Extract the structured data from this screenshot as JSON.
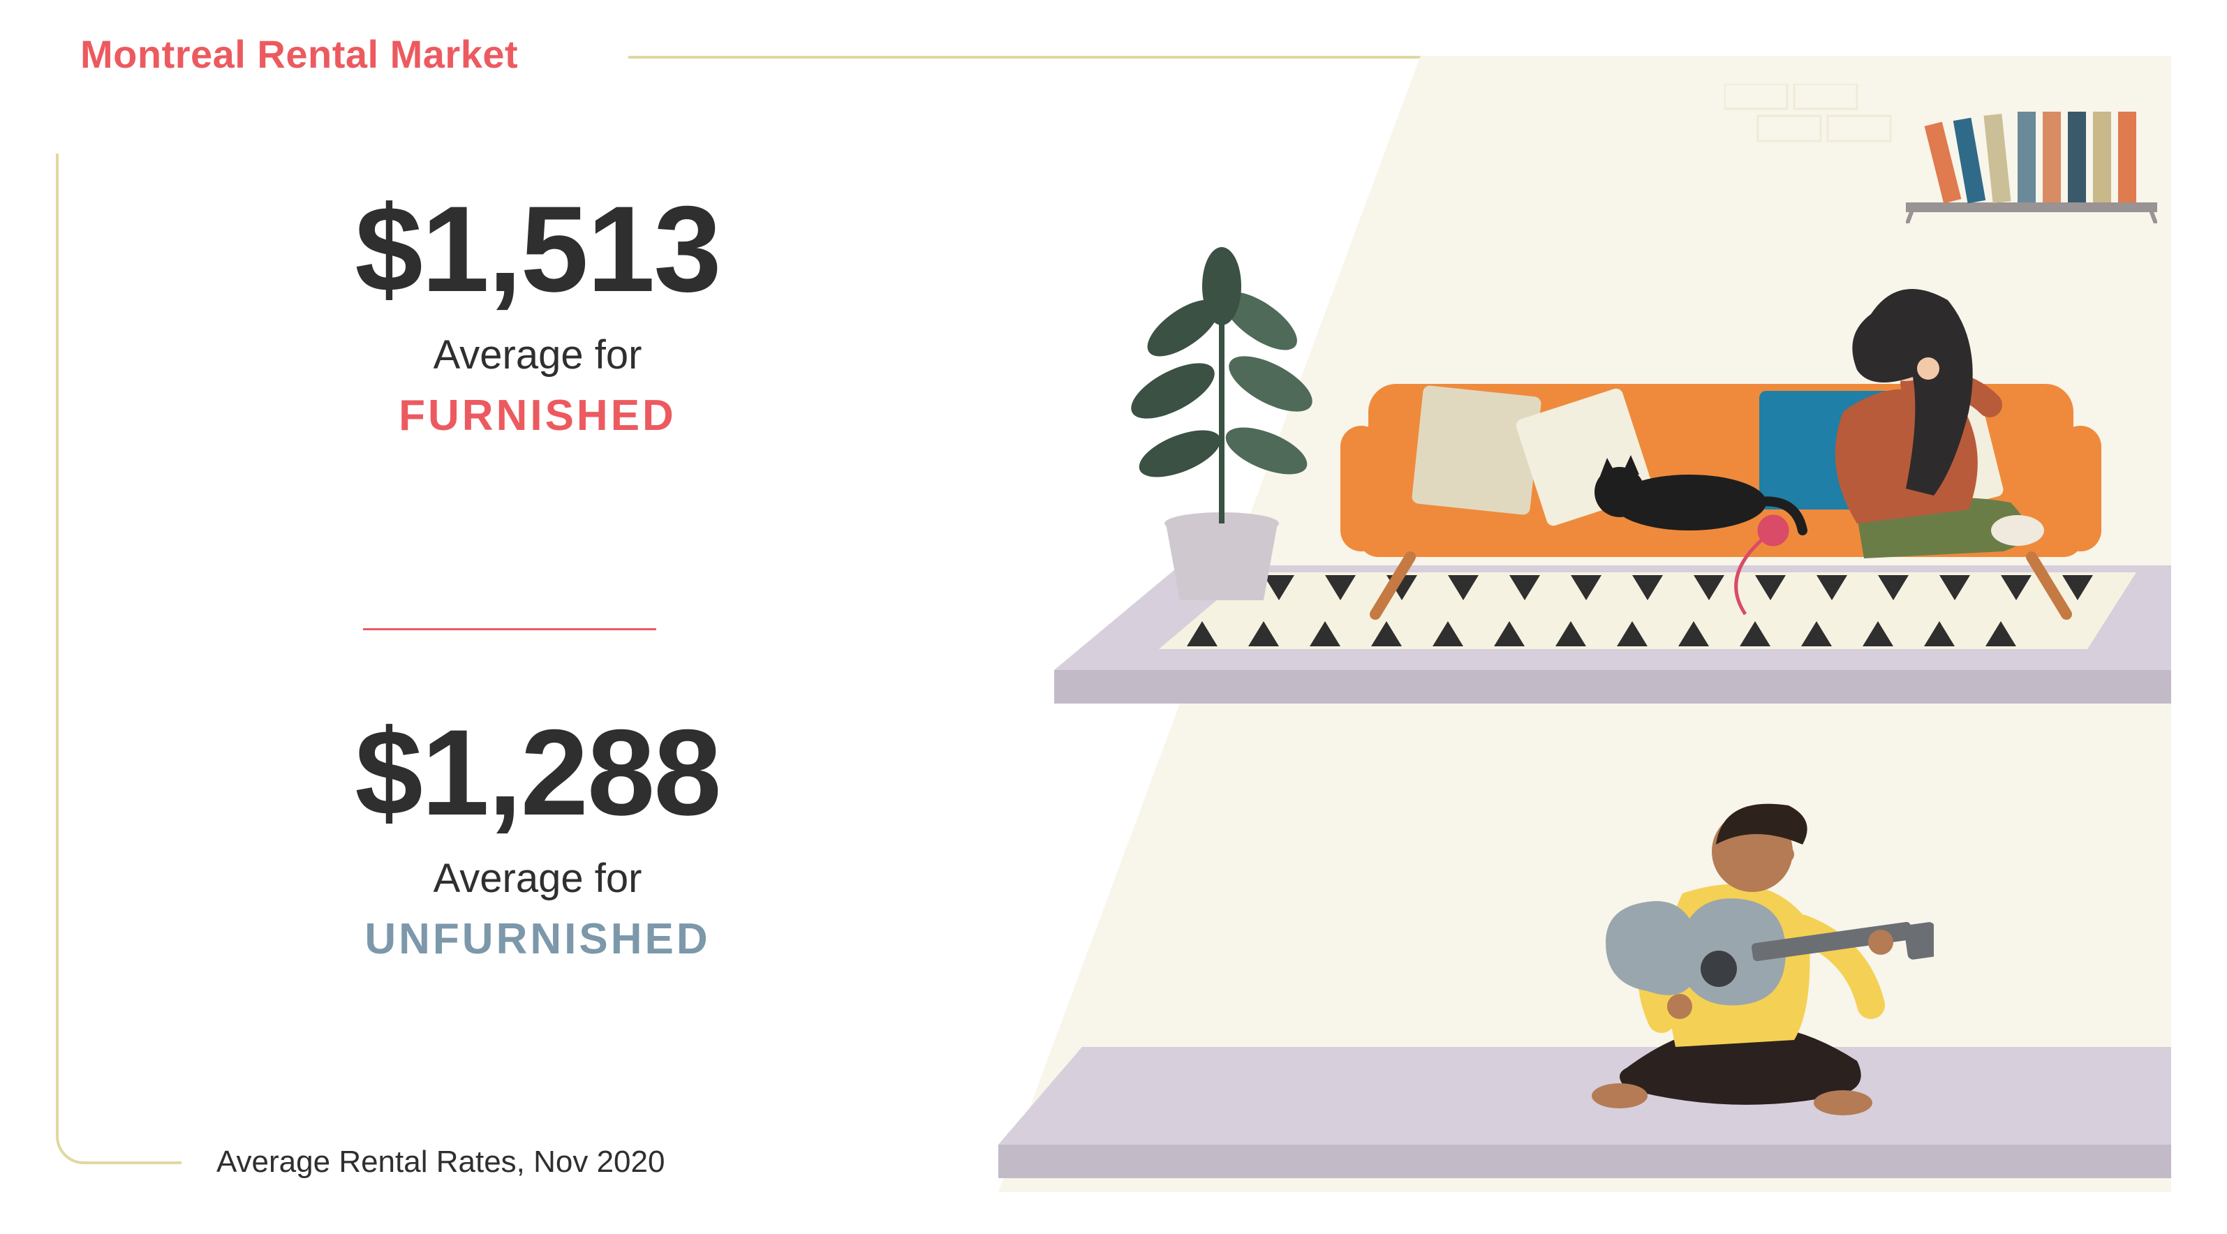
{
  "header": {
    "title": "Montreal Rental Market",
    "title_color": "#ec5a5f",
    "rule_color": "#e0d89f"
  },
  "footnote": "Average Rental Rates, Nov 2020",
  "divider_color": "#ec5a5f",
  "stats": {
    "furnished": {
      "price": "$1,513",
      "label": "Average for",
      "kind": "FURNISHED",
      "kind_color": "#ec5a5f"
    },
    "unfurnished": {
      "price": "$1,288",
      "label": "Average for",
      "kind": "UNFURNISHED",
      "kind_color": "#7c98aa"
    }
  },
  "text_color": "#2f2f2f",
  "illustration": {
    "backdrop_color": "#f8f5ea",
    "floor_surface": "#d7cfdb",
    "floor_edge": "#c3bac8",
    "rug_light": "#f6f2e1",
    "rug_dark": "#2f2f2f",
    "couch_color": "#ef8a3c",
    "couch_leg": "#c47a42",
    "cushion_cream": "#f3efde",
    "cushion_blue": "#1f7fa6",
    "cushion_pattern": "#e0d9bf",
    "plant_pot": "#cfc9cf",
    "plant_leaf": "#4f6a59",
    "plant_leaf_dark": "#3a5143",
    "shelf_color": "#9a9393",
    "book_colors": [
      "#e07a4f",
      "#2f6b88",
      "#cbbf97",
      "#6b8a99",
      "#d98b63",
      "#3a5a6b",
      "#c9b88a"
    ],
    "brick_color": "#eae2c6",
    "woman": {
      "hair": "#2e2b2d",
      "skin": "#f2c9a9",
      "top": "#b85b3a",
      "pants": "#6b7d46",
      "sock": "#efe9de"
    },
    "cat_color": "#1e1e1e",
    "yarn_color": "#d94b66",
    "man": {
      "hair": "#2e221c",
      "skin": "#b47b55",
      "shirt": "#f4d154",
      "pants": "#2b2220"
    },
    "guitar_body": "#9aa6ad",
    "guitar_neck": "#6b6f74",
    "guitar_hole": "#3b3f44"
  }
}
